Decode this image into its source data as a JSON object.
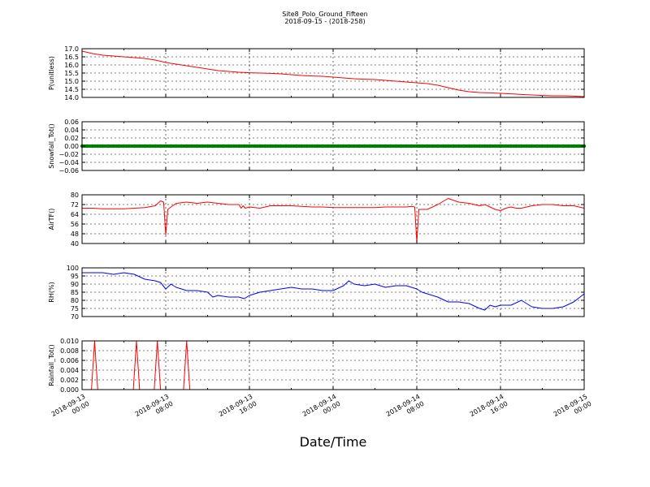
{
  "chart_data": {
    "type": "line",
    "title": "Site8_Polo_Ground_Fifteen",
    "subtitle": "2018-09-15 - (2018-258)",
    "xlabel": "Date/Time",
    "x_range": [
      "2018-09-13 00:00",
      "2018-09-15 00:00"
    ],
    "x_ticks": [
      {
        "l1": "2018-09-13",
        "l2": "00:00"
      },
      {
        "l1": "2018-09-13",
        "l2": "08:00"
      },
      {
        "l1": "2018-09-13",
        "l2": "16:00"
      },
      {
        "l1": "2018-09-14",
        "l2": "00:00"
      },
      {
        "l1": "2018-09-14",
        "l2": "08:00"
      },
      {
        "l1": "2018-09-14",
        "l2": "16:00"
      },
      {
        "l1": "2018-09-15",
        "l2": "00:00"
      }
    ],
    "grid": true,
    "panels": [
      {
        "ylabel": "P(unitless)",
        "ylim": [
          14.0,
          17.0
        ],
        "yticks": [
          "14.0",
          "14.5",
          "15.0",
          "15.5",
          "16.0",
          "16.5",
          "17.0"
        ],
        "color": "#ff0000",
        "x_hours": [
          0,
          1,
          2,
          3,
          4,
          5,
          6,
          7,
          8,
          9,
          10,
          11,
          12,
          13,
          14,
          15,
          16,
          17,
          18,
          19,
          20,
          21,
          22,
          23,
          24,
          25,
          26,
          27,
          28,
          29,
          30,
          31,
          32,
          33,
          34,
          35,
          36,
          37,
          38,
          39,
          40,
          41,
          42,
          43,
          44,
          45,
          46,
          47,
          48
        ],
        "values": [
          16.85,
          16.7,
          16.6,
          16.55,
          16.5,
          16.45,
          16.4,
          16.3,
          16.15,
          16.05,
          15.95,
          15.85,
          15.75,
          15.65,
          15.6,
          15.55,
          15.52,
          15.5,
          15.48,
          15.45,
          15.4,
          15.35,
          15.32,
          15.3,
          15.25,
          15.2,
          15.15,
          15.12,
          15.1,
          15.05,
          15.0,
          14.95,
          14.9,
          14.85,
          14.75,
          14.6,
          14.45,
          14.35,
          14.3,
          14.28,
          14.25,
          14.22,
          14.18,
          14.15,
          14.12,
          14.1,
          14.1,
          14.08,
          14.05
        ]
      },
      {
        "ylabel": "Snowfall_Tot()",
        "ylim": [
          -0.06,
          0.06
        ],
        "yticks": [
          "−0.06",
          "−0.04",
          "−0.02",
          "0.00",
          "0.02",
          "0.04",
          "0.06"
        ],
        "color": "#008000",
        "style": "marker-line",
        "x_hours": [
          0,
          48
        ],
        "values": [
          0.0,
          0.0
        ]
      },
      {
        "ylabel": "AirTF()",
        "ylim": [
          40,
          80
        ],
        "yticks": [
          "40",
          "48",
          "56",
          "64",
          "72",
          "80"
        ],
        "color": "#ff0000",
        "x_hours": [
          0,
          1,
          2,
          3,
          4,
          5,
          6,
          7,
          7.5,
          7.8,
          8.0,
          8.2,
          8.5,
          9,
          10,
          11,
          12,
          13,
          14,
          15,
          15.2,
          15.4,
          15.6,
          16,
          17,
          18,
          19,
          20,
          21,
          22,
          23,
          24,
          25,
          26,
          27,
          28,
          29,
          30,
          31,
          31.5,
          31.8,
          32.0,
          32.2,
          33,
          34,
          35,
          36,
          37,
          38,
          38.5,
          39,
          39.5,
          40,
          40.5,
          41,
          41.5,
          42,
          43,
          44,
          45,
          46,
          47,
          48
        ],
        "values": [
          69,
          69,
          68.5,
          68.5,
          68.5,
          69,
          69.5,
          71,
          75,
          74,
          47,
          68,
          70,
          73,
          74,
          73,
          74,
          73,
          72,
          72,
          69,
          71,
          69,
          70,
          69,
          71,
          71,
          71,
          70.5,
          70,
          70,
          69.5,
          69.5,
          69.5,
          69.5,
          69.5,
          70,
          70,
          70,
          70.5,
          70,
          41,
          68,
          68,
          72,
          77,
          74,
          73,
          71,
          72,
          70,
          68,
          67,
          69,
          70,
          69,
          69,
          71,
          72,
          72,
          71,
          71,
          69
        ]
      },
      {
        "ylabel": "RH(%)",
        "ylim": [
          70,
          100
        ],
        "yticks": [
          "70",
          "75",
          "80",
          "85",
          "90",
          "95",
          "100"
        ],
        "color": "#0000ff",
        "x_hours": [
          0,
          1,
          2,
          3,
          4,
          5,
          6,
          7,
          7.5,
          8,
          8.5,
          9,
          10,
          11,
          12,
          12.5,
          13,
          14,
          15,
          15.5,
          16,
          17,
          18,
          19,
          20,
          21,
          22,
          23,
          24,
          25,
          25.5,
          26,
          27,
          28,
          29,
          30,
          31,
          31.5,
          32,
          32.5,
          33,
          34,
          35,
          36,
          37,
          38,
          38.5,
          39,
          39.5,
          40,
          41,
          42,
          43,
          44,
          45,
          46,
          47,
          48
        ],
        "values": [
          97,
          97,
          97,
          96,
          97,
          96,
          93,
          92,
          91,
          87,
          90,
          88,
          86,
          86,
          85,
          82,
          83,
          82,
          82,
          81,
          83,
          85,
          86,
          87,
          88,
          87,
          87,
          86,
          86,
          89,
          92,
          90,
          89,
          90,
          88,
          89,
          89,
          88,
          87,
          85,
          84,
          82,
          79,
          79,
          78,
          75,
          74,
          77,
          76,
          77,
          77,
          80,
          76,
          75,
          75,
          76,
          79,
          84
        ]
      },
      {
        "ylabel": "Rainfall_Tot()",
        "ylim": [
          0.0,
          0.01
        ],
        "yticks": [
          "0.000",
          "0.002",
          "0.004",
          "0.006",
          "0.008",
          "0.010"
        ],
        "color": "#ff0000",
        "x_hours": [
          0,
          0.9,
          1.2,
          1.5,
          4.9,
          5.2,
          5.5,
          6.9,
          7.2,
          7.5,
          9.7,
          10.0,
          10.3,
          48
        ],
        "values": [
          0,
          0,
          0.01,
          0,
          0,
          0.01,
          0,
          0,
          0.01,
          0,
          0,
          0.01,
          0,
          0
        ]
      }
    ]
  }
}
